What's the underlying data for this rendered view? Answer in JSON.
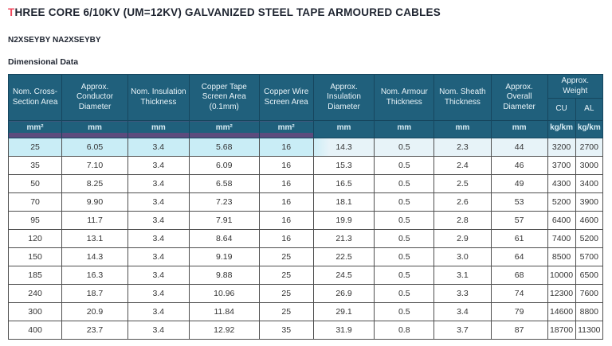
{
  "page": {
    "title_first_letter": "T",
    "title_rest": "HREE CORE 6/10KV (UM=12KV) GALVANIZED STEEL TAPE ARMOURED CABLES",
    "subtitle": "N2XSEYBY NA2XSEYBY",
    "section_label": "Dimensional Data"
  },
  "colors": {
    "title_accent_red": "#f0475c",
    "header_teal": "#20607c",
    "units_strip_purple": "#5c4b7d",
    "first_row_highlight": "#c9edf6"
  },
  "table": {
    "columns": [
      {
        "label": "Nom. Cross-Section Area",
        "unit": "mm²"
      },
      {
        "label": "Approx. Conductor Diameter",
        "unit": "mm"
      },
      {
        "label": "Nom. Insulation Thickness",
        "unit": "mm"
      },
      {
        "label": "Copper Tape Screen Area (0.1mm)",
        "unit": "mm²"
      },
      {
        "label": "Copper Wire Screen Area",
        "unit": "mm²"
      },
      {
        "label": "Approx. Insulation Diameter",
        "unit": "mm"
      },
      {
        "label": "Nom. Armour Thickness",
        "unit": "mm"
      },
      {
        "label": "Nom. Sheath Thickness",
        "unit": "mm"
      },
      {
        "label": "Approx. Overall Diameter",
        "unit": "mm"
      }
    ],
    "weight_group": {
      "label": "Approx. Weight",
      "sub_columns": [
        "CU",
        "AL"
      ],
      "units": [
        "kg/km",
        "kg/km"
      ]
    },
    "rows": [
      [
        "25",
        "6.05",
        "3.4",
        "5.68",
        "16",
        "14.3",
        "0.5",
        "2.3",
        "44",
        "3200",
        "2700"
      ],
      [
        "35",
        "7.10",
        "3.4",
        "6.09",
        "16",
        "15.3",
        "0.5",
        "2.4",
        "46",
        "3700",
        "3000"
      ],
      [
        "50",
        "8.25",
        "3.4",
        "6.58",
        "16",
        "16.5",
        "0.5",
        "2.5",
        "49",
        "4300",
        "3400"
      ],
      [
        "70",
        "9.90",
        "3.4",
        "7.23",
        "16",
        "18.1",
        "0.5",
        "2.6",
        "53",
        "5200",
        "3900"
      ],
      [
        "95",
        "11.7",
        "3.4",
        "7.91",
        "16",
        "19.9",
        "0.5",
        "2.8",
        "57",
        "6400",
        "4600"
      ],
      [
        "120",
        "13.1",
        "3.4",
        "8.64",
        "16",
        "21.3",
        "0.5",
        "2.9",
        "61",
        "7400",
        "5200"
      ],
      [
        "150",
        "14.3",
        "3.4",
        "9.19",
        "25",
        "22.5",
        "0.5",
        "3.0",
        "64",
        "8500",
        "5700"
      ],
      [
        "185",
        "16.3",
        "3.4",
        "9.88",
        "25",
        "24.5",
        "0.5",
        "3.1",
        "68",
        "10000",
        "6500"
      ],
      [
        "240",
        "18.7",
        "3.4",
        "10.96",
        "25",
        "26.9",
        "0.5",
        "3.3",
        "74",
        "12300",
        "7600"
      ],
      [
        "300",
        "20.9",
        "3.4",
        "11.84",
        "25",
        "29.1",
        "0.5",
        "3.4",
        "79",
        "14600",
        "8800"
      ],
      [
        "400",
        "23.7",
        "3.4",
        "12.92",
        "35",
        "31.9",
        "0.8",
        "3.7",
        "87",
        "18700",
        "11300"
      ]
    ]
  }
}
